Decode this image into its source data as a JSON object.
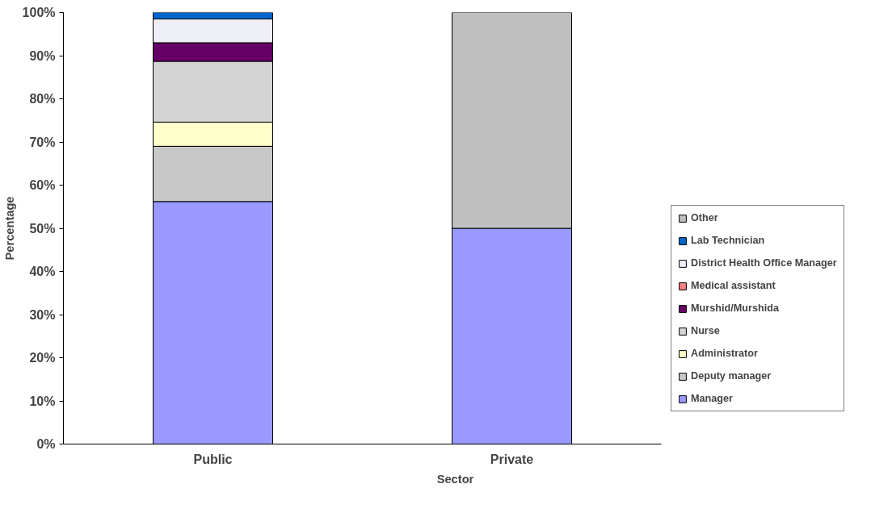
{
  "chart_data": {
    "type": "bar",
    "stacked": true,
    "xlabel": "Sector",
    "ylabel": "Percentage",
    "categories": [
      "Public",
      "Private"
    ],
    "series": [
      {
        "name": "Manager",
        "color": "#9999ff",
        "values": [
          56.2,
          50
        ]
      },
      {
        "name": "Deputy manager",
        "color": "#c8c8c8",
        "values": [
          12.8,
          0
        ]
      },
      {
        "name": "Administrator",
        "color": "#ffffcc",
        "values": [
          5.6,
          0
        ]
      },
      {
        "name": "Nurse",
        "color": "#d4d4d4",
        "values": [
          14.1,
          0
        ]
      },
      {
        "name": "Murshid/Murshida",
        "color": "#660066",
        "values": [
          4.3,
          0
        ]
      },
      {
        "name": "Medical assistant",
        "color": "#ff8080",
        "values": [
          0,
          0
        ]
      },
      {
        "name": "District Health Office Manager",
        "color": "#eeeef6",
        "values": [
          5.5,
          0
        ]
      },
      {
        "name": "Lab Technician",
        "color": "#0066cc",
        "values": [
          1.5,
          0
        ]
      },
      {
        "name": "Other",
        "color": "#bfbfbf",
        "values": [
          0,
          50
        ]
      }
    ],
    "ylim": [
      0,
      100
    ],
    "yticks": [
      {
        "value": 0,
        "label": "0%"
      },
      {
        "value": 10,
        "label": "10%"
      },
      {
        "value": 20,
        "label": "20%"
      },
      {
        "value": 30,
        "label": "30%"
      },
      {
        "value": 40,
        "label": "40%"
      },
      {
        "value": 50,
        "label": "50%"
      },
      {
        "value": 60,
        "label": "60%"
      },
      {
        "value": 70,
        "label": "70%"
      },
      {
        "value": 80,
        "label": "80%"
      },
      {
        "value": 90,
        "label": "90%"
      },
      {
        "value": 100,
        "label": "100%"
      }
    ],
    "grid": false,
    "legend": "right"
  }
}
